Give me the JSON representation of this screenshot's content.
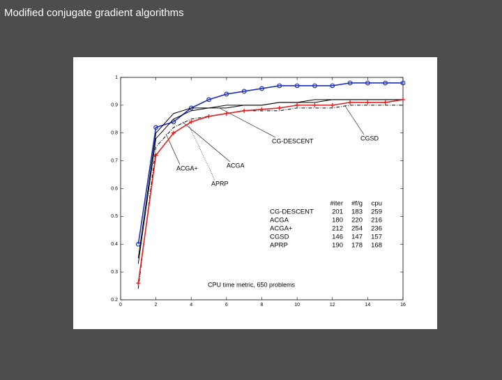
{
  "slide_title": "Modified conjugate gradient algorithms",
  "chart_data": {
    "type": "line",
    "annotation": "CPU time metric, 650 problems",
    "x": [
      1,
      2,
      3,
      4,
      5,
      6,
      7,
      8,
      9,
      10,
      11,
      12,
      13,
      14,
      15,
      16
    ],
    "xlim": [
      0,
      16
    ],
    "xticks": [
      0,
      2,
      4,
      6,
      8,
      10,
      12,
      14,
      16
    ],
    "ylim": [
      0.2,
      1
    ],
    "yticks": [
      0.2,
      0.3,
      0.4,
      0.5,
      0.6,
      0.7,
      0.8,
      0.9,
      1
    ],
    "table_columns": [
      "#iter",
      "#f/g",
      "cpu"
    ],
    "series": [
      {
        "name": "CG-DESCENT",
        "color": "#1f2fb8",
        "style": "solid",
        "marker": "circle",
        "table_values": [
          201,
          183,
          259
        ],
        "values": [
          0.4,
          0.82,
          0.84,
          0.89,
          0.92,
          0.94,
          0.95,
          0.96,
          0.97,
          0.97,
          0.97,
          0.97,
          0.98,
          0.98,
          0.98,
          0.98
        ]
      },
      {
        "name": "ACGA",
        "color": "#000000",
        "style": "solid",
        "marker": null,
        "table_values": [
          180,
          220,
          216
        ],
        "values": [
          0.33,
          0.78,
          0.85,
          0.88,
          0.89,
          0.89,
          0.9,
          0.9,
          0.91,
          0.91,
          0.92,
          0.92,
          0.92,
          0.92,
          0.92,
          0.92
        ]
      },
      {
        "name": "ACGA+",
        "color": "#000000",
        "style": "solid",
        "marker": null,
        "table_values": [
          212,
          254,
          236
        ],
        "values": [
          0.35,
          0.8,
          0.87,
          0.89,
          0.89,
          0.9,
          0.9,
          0.9,
          0.91,
          0.91,
          0.91,
          0.92,
          0.92,
          0.92,
          0.92,
          0.92
        ]
      },
      {
        "name": "CGSD",
        "color": "#000000",
        "style": "dashdot",
        "marker": null,
        "table_values": [
          146,
          147,
          157
        ],
        "values": [
          0.24,
          0.75,
          0.82,
          0.85,
          0.86,
          0.87,
          0.88,
          0.88,
          0.88,
          0.89,
          0.89,
          0.89,
          0.9,
          0.9,
          0.9,
          0.9
        ]
      },
      {
        "name": "APRP",
        "color": "#e02020",
        "style": "solid",
        "marker": "plus",
        "table_values": [
          190,
          178,
          168
        ],
        "values": [
          0.26,
          0.72,
          0.8,
          0.84,
          0.86,
          0.87,
          0.88,
          0.885,
          0.89,
          0.9,
          0.9,
          0.9,
          0.91,
          0.91,
          0.91,
          0.92
        ]
      }
    ]
  }
}
